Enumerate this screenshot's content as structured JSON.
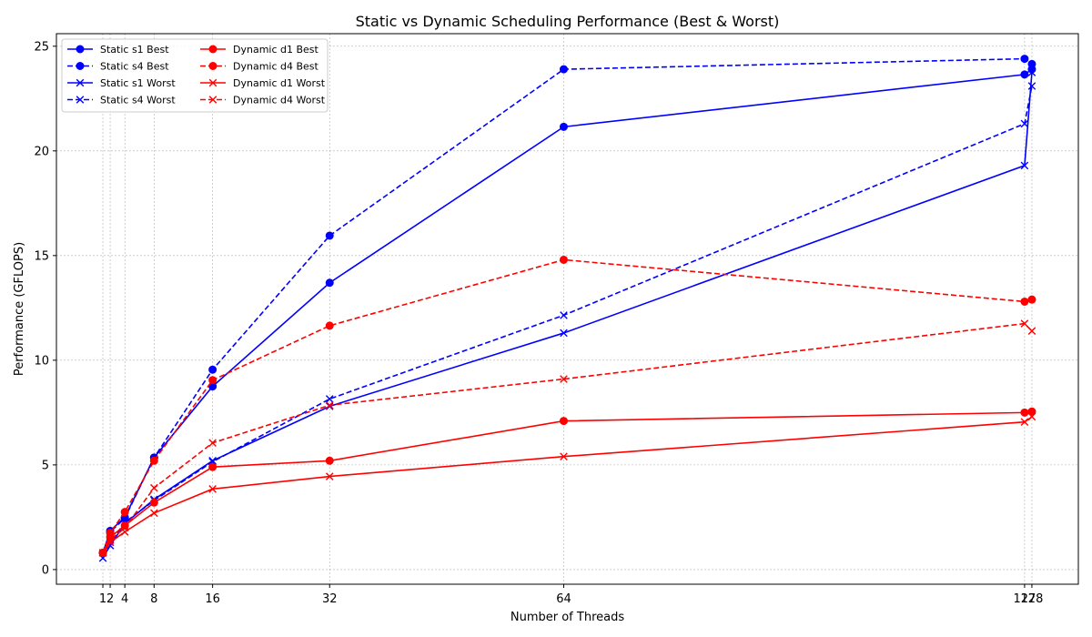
{
  "chart_data": {
    "type": "line",
    "title": "Static vs Dynamic Scheduling Performance (Best & Worst)",
    "xlabel": "Number of Threads",
    "ylabel": "Performance (GFLOPS)",
    "xlim": [
      -5.35,
      134.35
    ],
    "ylim": [
      -0.7,
      25.6
    ],
    "xticks": [
      1,
      2,
      4,
      8,
      16,
      32,
      64,
      127,
      128
    ],
    "xtick_labels": [
      "1",
      "2",
      "4",
      "8",
      "16",
      "32",
      "64",
      "127",
      "128"
    ],
    "yticks": [
      0,
      5,
      10,
      15,
      20,
      25
    ],
    "grid": true,
    "legend_position": "upper-left",
    "legend_columns": 2,
    "colors": {
      "static": "#0000ff",
      "dynamic": "#ff0000",
      "grid": "#b0b0b0"
    },
    "x": [
      1,
      2,
      4,
      8,
      16,
      32,
      64,
      127,
      128
    ],
    "series": [
      {
        "name": "Static s1 Best",
        "color": "#0000ff",
        "linestyle": "solid",
        "marker": "circle",
        "values": [
          0.8,
          1.85,
          2.5,
          5.35,
          8.75,
          13.7,
          21.15,
          23.65,
          23.9
        ]
      },
      {
        "name": "Static s4 Best",
        "color": "#0000ff",
        "linestyle": "dashed",
        "marker": "circle",
        "values": [
          0.8,
          1.8,
          2.45,
          5.35,
          9.55,
          15.95,
          23.9,
          24.4,
          24.15
        ]
      },
      {
        "name": "Static s1 Worst",
        "color": "#0000ff",
        "linestyle": "solid",
        "marker": "x",
        "values": [
          0.55,
          1.15,
          2.2,
          3.35,
          5.2,
          7.8,
          11.3,
          19.3,
          23.75
        ]
      },
      {
        "name": "Static s4 Worst",
        "color": "#0000ff",
        "linestyle": "dashed",
        "marker": "x",
        "values": [
          0.8,
          1.3,
          2.25,
          3.3,
          5.15,
          8.15,
          12.15,
          21.3,
          23.1
        ]
      },
      {
        "name": "Dynamic d1 Best",
        "color": "#ff0000",
        "linestyle": "solid",
        "marker": "circle",
        "values": [
          0.8,
          1.55,
          2.1,
          3.2,
          4.9,
          5.2,
          7.1,
          7.5,
          7.55
        ]
      },
      {
        "name": "Dynamic d4 Best",
        "color": "#ff0000",
        "linestyle": "dashed",
        "marker": "circle",
        "values": [
          0.8,
          1.75,
          2.75,
          5.2,
          9.05,
          11.65,
          14.8,
          12.8,
          12.9
        ]
      },
      {
        "name": "Dynamic d1 Worst",
        "color": "#ff0000",
        "linestyle": "solid",
        "marker": "x",
        "values": [
          0.8,
          1.3,
          1.8,
          2.7,
          3.85,
          4.45,
          5.4,
          7.05,
          7.3
        ]
      },
      {
        "name": "Dynamic d4 Worst",
        "color": "#ff0000",
        "linestyle": "dashed",
        "marker": "x",
        "values": [
          0.8,
          1.4,
          2.0,
          3.9,
          6.05,
          7.85,
          9.1,
          11.75,
          11.4
        ]
      }
    ]
  }
}
